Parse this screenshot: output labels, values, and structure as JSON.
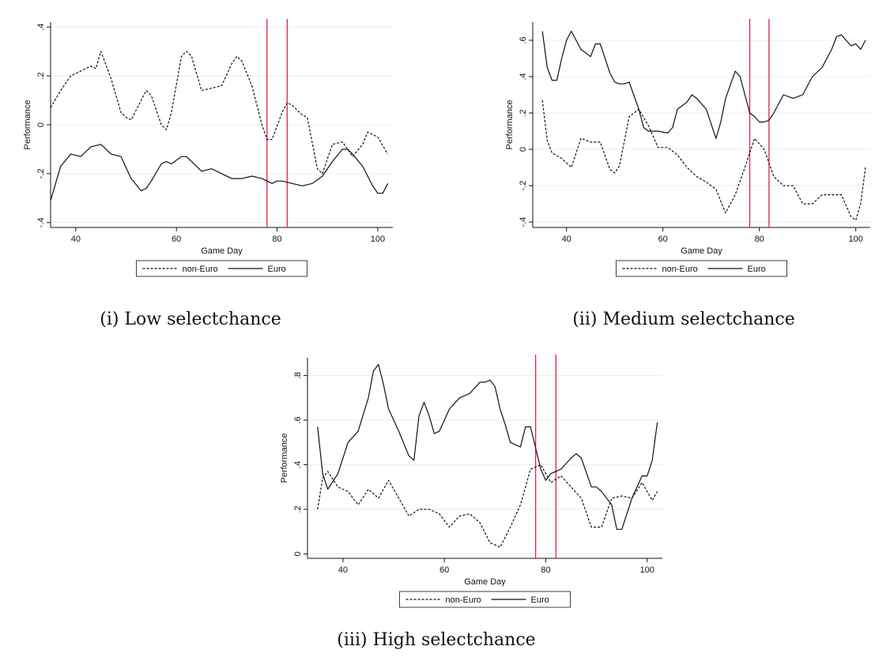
{
  "chart_data": [
    {
      "type": "line",
      "caption": "(i) Low selectchance",
      "xlabel": "Game Day",
      "ylabel": "Performance",
      "xlim": [
        35,
        103
      ],
      "ylim": [
        -0.42,
        0.42
      ],
      "xticks": [
        40,
        60,
        80,
        100
      ],
      "yticks": [
        -0.4,
        -0.2,
        0,
        0.2,
        0.4
      ],
      "ytick_labels": [
        "-.4",
        "-.2",
        "0",
        ".2",
        ".4"
      ],
      "vlines": [
        78,
        82
      ],
      "vline_color": "#d7263d",
      "grid": "horizontal",
      "legend": "bottom",
      "series": [
        {
          "name": "non-Euro",
          "style": "dashed",
          "x": [
            35,
            37,
            39,
            41,
            43,
            44,
            45,
            47,
            49,
            50,
            51,
            53,
            54,
            55,
            57,
            58,
            59,
            61,
            62,
            63,
            65,
            67,
            69,
            71,
            72,
            73,
            75,
            77,
            78,
            79,
            81,
            82,
            83,
            85,
            86,
            88,
            89,
            90,
            91,
            93,
            95,
            97,
            98,
            100,
            102
          ],
          "y": [
            0.07,
            0.14,
            0.2,
            0.22,
            0.24,
            0.23,
            0.3,
            0.19,
            0.05,
            0.03,
            0.02,
            0.1,
            0.14,
            0.12,
            0.0,
            -0.02,
            0.05,
            0.28,
            0.3,
            0.28,
            0.14,
            0.15,
            0.16,
            0.25,
            0.28,
            0.26,
            0.16,
            0.0,
            -0.06,
            -0.06,
            0.05,
            0.09,
            0.08,
            0.04,
            0.03,
            -0.18,
            -0.2,
            -0.14,
            -0.08,
            -0.07,
            -0.13,
            -0.08,
            -0.03,
            -0.05,
            -0.12
          ]
        },
        {
          "name": "Euro",
          "style": "solid",
          "x": [
            35,
            37,
            39,
            41,
            42,
            43,
            45,
            47,
            49,
            51,
            53,
            54,
            55,
            57,
            58,
            59,
            61,
            62,
            63,
            65,
            67,
            69,
            71,
            73,
            75,
            77,
            79,
            80,
            81,
            83,
            85,
            87,
            89,
            91,
            93,
            94,
            95,
            97,
            99,
            100,
            101,
            102
          ],
          "y": [
            -0.31,
            -0.17,
            -0.12,
            -0.13,
            -0.11,
            -0.09,
            -0.08,
            -0.12,
            -0.13,
            -0.22,
            -0.27,
            -0.26,
            -0.23,
            -0.16,
            -0.15,
            -0.16,
            -0.13,
            -0.13,
            -0.15,
            -0.19,
            -0.18,
            -0.2,
            -0.22,
            -0.22,
            -0.21,
            -0.22,
            -0.24,
            -0.23,
            -0.23,
            -0.24,
            -0.25,
            -0.24,
            -0.21,
            -0.15,
            -0.1,
            -0.1,
            -0.12,
            -0.17,
            -0.25,
            -0.28,
            -0.28,
            -0.24
          ]
        }
      ]
    },
    {
      "type": "line",
      "caption": "(ii) Medium selectchance",
      "xlabel": "Game Day",
      "ylabel": "Performance",
      "xlim": [
        33,
        103
      ],
      "ylim": [
        -0.43,
        0.7
      ],
      "xticks": [
        40,
        60,
        80,
        100
      ],
      "yticks": [
        -0.4,
        -0.2,
        0,
        0.2,
        0.4,
        0.6
      ],
      "ytick_labels": [
        "-.4",
        "-.2",
        "0",
        ".2",
        ".4",
        ".6"
      ],
      "vlines": [
        78,
        82
      ],
      "vline_color": "#d7263d",
      "grid": "horizontal",
      "legend": "bottom",
      "series": [
        {
          "name": "non-Euro",
          "style": "dashed",
          "x": [
            35,
            36,
            37,
            39,
            41,
            43,
            45,
            47,
            49,
            50,
            51,
            53,
            55,
            57,
            59,
            61,
            63,
            65,
            67,
            69,
            71,
            73,
            75,
            77,
            79,
            81,
            83,
            85,
            87,
            89,
            91,
            93,
            95,
            97,
            99,
            100,
            101,
            102
          ],
          "y": [
            0.27,
            0.05,
            -0.02,
            -0.05,
            -0.1,
            0.06,
            0.04,
            0.04,
            -0.11,
            -0.13,
            -0.09,
            0.18,
            0.22,
            0.13,
            0.01,
            0.01,
            -0.03,
            -0.1,
            -0.15,
            -0.18,
            -0.22,
            -0.35,
            -0.25,
            -0.1,
            0.06,
            0.0,
            -0.15,
            -0.2,
            -0.2,
            -0.3,
            -0.3,
            -0.25,
            -0.25,
            -0.25,
            -0.37,
            -0.39,
            -0.3,
            -0.1
          ]
        },
        {
          "name": "Euro",
          "style": "solid",
          "x": [
            35,
            36,
            37,
            38,
            39,
            40,
            41,
            42,
            43,
            45,
            46,
            47,
            48,
            49,
            50,
            51,
            52,
            53,
            55,
            56,
            57,
            58,
            59,
            61,
            62,
            63,
            65,
            66,
            67,
            69,
            71,
            72,
            73,
            75,
            76,
            77,
            78,
            79,
            80,
            81,
            82,
            83,
            85,
            87,
            89,
            91,
            93,
            95,
            96,
            97,
            98,
            99,
            100,
            101,
            102
          ],
          "y": [
            0.65,
            0.45,
            0.38,
            0.38,
            0.5,
            0.6,
            0.65,
            0.6,
            0.55,
            0.51,
            0.58,
            0.58,
            0.5,
            0.42,
            0.37,
            0.36,
            0.36,
            0.37,
            0.22,
            0.12,
            0.1,
            0.1,
            0.1,
            0.09,
            0.12,
            0.22,
            0.26,
            0.3,
            0.28,
            0.22,
            0.06,
            0.15,
            0.28,
            0.43,
            0.4,
            0.3,
            0.2,
            0.18,
            0.15,
            0.15,
            0.16,
            0.2,
            0.3,
            0.28,
            0.3,
            0.4,
            0.45,
            0.55,
            0.62,
            0.63,
            0.6,
            0.57,
            0.58,
            0.55,
            0.6
          ]
        }
      ]
    },
    {
      "type": "line",
      "caption": "(iii) High selectchance",
      "xlabel": "Game Day",
      "ylabel": "Performance",
      "xlim": [
        33,
        103
      ],
      "ylim": [
        -0.02,
        0.88
      ],
      "xticks": [
        40,
        60,
        80,
        100
      ],
      "yticks": [
        0,
        0.2,
        0.4,
        0.6,
        0.8
      ],
      "ytick_labels": [
        "0",
        ".2",
        ".4",
        ".6",
        ".8"
      ],
      "vlines": [
        78,
        82
      ],
      "vline_color": "#d7263d",
      "grid": "horizontal",
      "legend": "bottom",
      "series": [
        {
          "name": "non-Euro",
          "style": "dashed",
          "x": [
            35,
            36,
            37,
            39,
            41,
            43,
            45,
            47,
            49,
            51,
            53,
            55,
            57,
            59,
            61,
            63,
            65,
            67,
            69,
            71,
            73,
            75,
            77,
            79,
            81,
            83,
            85,
            87,
            89,
            91,
            93,
            95,
            97,
            99,
            101,
            102
          ],
          "y": [
            0.2,
            0.34,
            0.37,
            0.3,
            0.28,
            0.22,
            0.29,
            0.25,
            0.33,
            0.25,
            0.17,
            0.2,
            0.2,
            0.18,
            0.12,
            0.17,
            0.18,
            0.14,
            0.05,
            0.03,
            0.12,
            0.22,
            0.38,
            0.4,
            0.32,
            0.35,
            0.3,
            0.25,
            0.12,
            0.12,
            0.25,
            0.26,
            0.25,
            0.32,
            0.24,
            0.28
          ]
        },
        {
          "name": "Euro",
          "style": "solid",
          "x": [
            35,
            36,
            37,
            39,
            41,
            43,
            45,
            46,
            47,
            48,
            49,
            51,
            53,
            54,
            55,
            56,
            57,
            58,
            59,
            61,
            63,
            64,
            65,
            67,
            68,
            69,
            70,
            71,
            72,
            73,
            75,
            76,
            77,
            79,
            80,
            81,
            83,
            85,
            86,
            87,
            89,
            90,
            91,
            92,
            93,
            94,
            95,
            97,
            99,
            100,
            101,
            102
          ],
          "y": [
            0.57,
            0.36,
            0.29,
            0.36,
            0.5,
            0.55,
            0.7,
            0.82,
            0.85,
            0.76,
            0.65,
            0.55,
            0.44,
            0.42,
            0.62,
            0.68,
            0.62,
            0.54,
            0.55,
            0.65,
            0.7,
            0.71,
            0.72,
            0.77,
            0.77,
            0.78,
            0.75,
            0.65,
            0.58,
            0.5,
            0.48,
            0.57,
            0.57,
            0.38,
            0.33,
            0.36,
            0.38,
            0.43,
            0.45,
            0.43,
            0.3,
            0.3,
            0.28,
            0.25,
            0.22,
            0.11,
            0.11,
            0.25,
            0.35,
            0.35,
            0.42,
            0.59
          ]
        }
      ]
    }
  ]
}
